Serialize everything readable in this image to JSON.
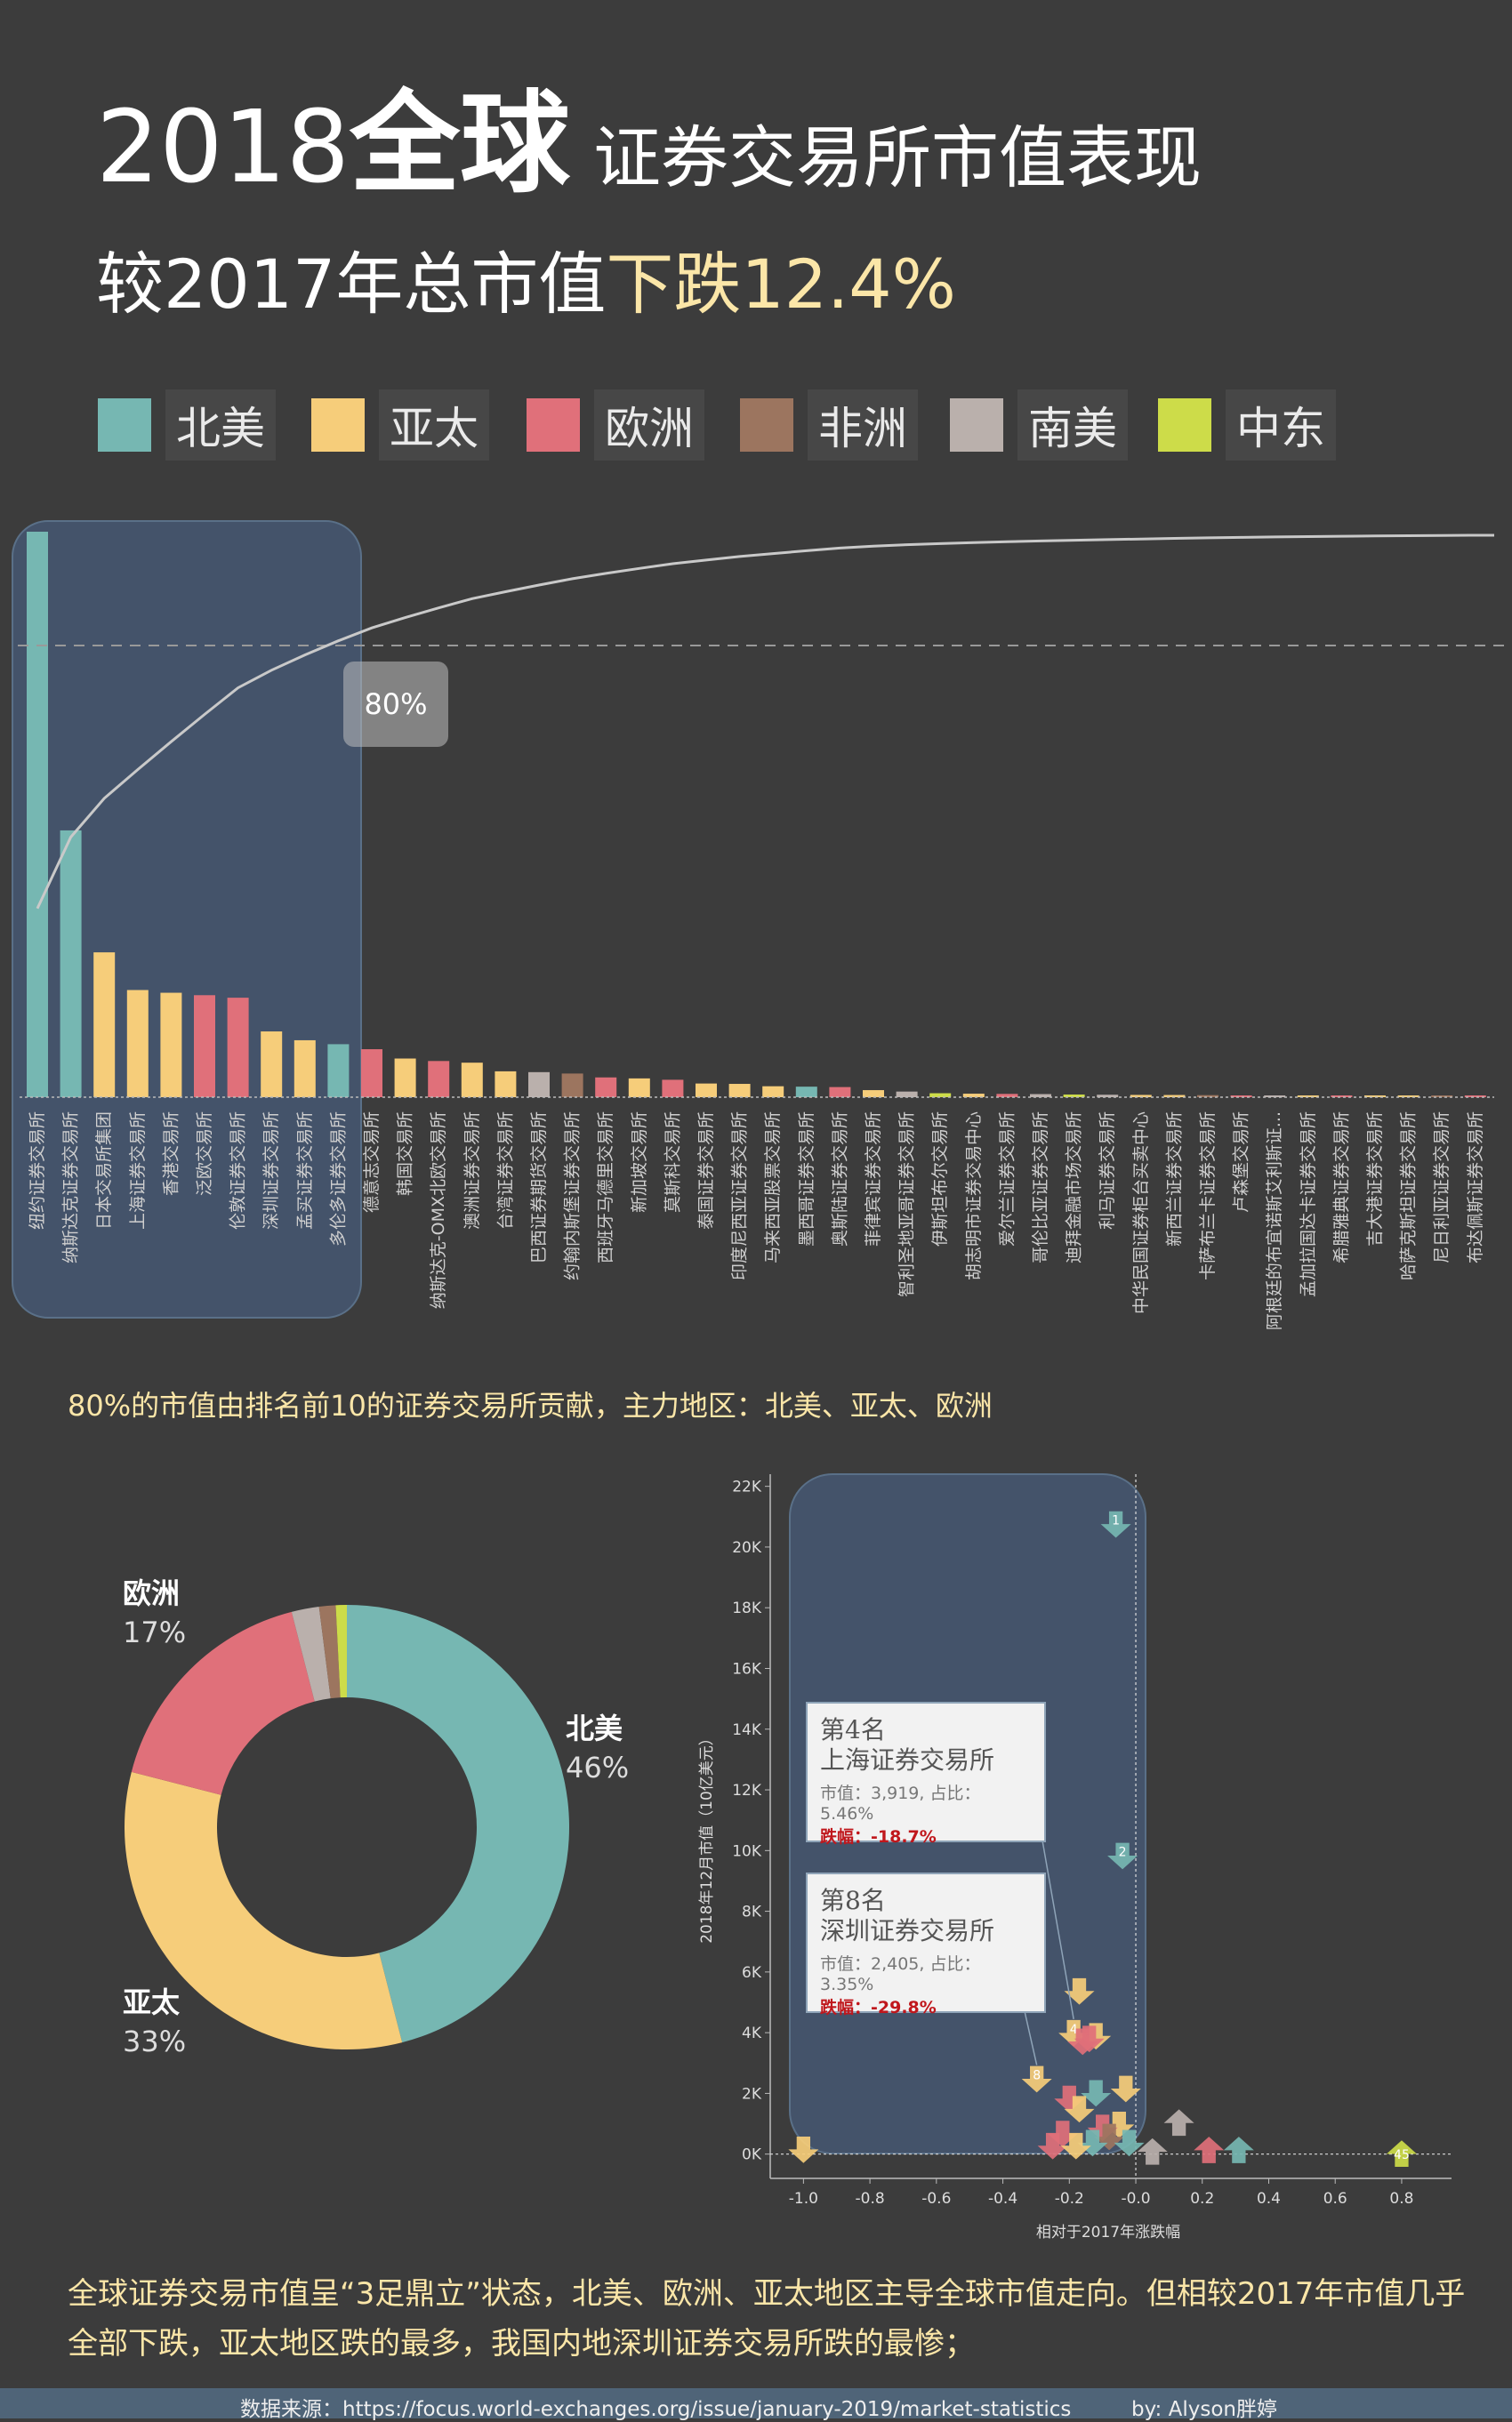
{
  "header": {
    "year": "2018",
    "global": "全球",
    "title_rest": "证券交易所市值表现",
    "subtitle_prefix": "较2017年总市值",
    "subtitle_highlight": "下跌12.4%"
  },
  "legend": [
    {
      "label": "北美",
      "color": "#76b7b2"
    },
    {
      "label": "亚太",
      "color": "#f6cd7a"
    },
    {
      "label": "欧洲",
      "color": "#e0707a"
    },
    {
      "label": "非洲",
      "color": "#9c755f"
    },
    {
      "label": "南美",
      "color": "#bab0ac"
    },
    {
      "label": "中东",
      "color": "#cddc49"
    }
  ],
  "colors": {
    "北美": "#76b7b2",
    "亚太": "#f6cd7a",
    "欧洲": "#e0707a",
    "非洲": "#9c755f",
    "南美": "#bab0ac",
    "中东": "#cddc49",
    "panel": "#44536a",
    "panel_border": "#5a7088",
    "bg": "#3c3c3c"
  },
  "annotation_80": "80%",
  "note1": "80%的市值由排名前10的证券交易所贡献，主力地区：北美、亚太、欧洲",
  "note2": "全球证券交易市值呈“3足鼎立”状态，北美、欧洲、亚太地区主导全球市值走向。但相较2017年市值几乎全部下跌，亚太地区跌的最多，我国内地深圳证券交易所跌的最惨；",
  "footer": {
    "source": "数据来源：https://focus.world-exchanges.org/issue/january-2019/market-statistics",
    "by": "by: Alyson胖婷"
  },
  "donut_labels": {
    "eu_name": "欧洲",
    "eu_pct": "17%",
    "na_name": "北美",
    "na_pct": "46%",
    "ap_name": "亚太",
    "ap_pct": "33%"
  },
  "tooltips": [
    {
      "rank": "第4名",
      "name": "上海证券交易所",
      "mv": "市值：3,919, 占比：5.46%",
      "drop": "跌幅：-18.7%"
    },
    {
      "rank": "第8名",
      "name": "深圳证券交易所",
      "mv": "市值：2,405, 占比：3.35%",
      "drop": "跌幅：-29.8%"
    }
  ],
  "chart_data": [
    {
      "type": "bar",
      "title": "",
      "xlabel": "",
      "ylabel": "",
      "grid": false,
      "categories": [
        "纽约证券交易所",
        "纳斯达克证券交易所",
        "日本交易所集团",
        "上海证券交易所",
        "香港交易所",
        "泛欧交易所",
        "伦敦证券交易所",
        "深圳证券交易所",
        "孟买证券交易所",
        "多伦多证券交易所",
        "德意志交易所",
        "韩国交易所",
        "纳斯达克-OMX北欧交易所",
        "澳洲证券交易所",
        "台湾证券交易所",
        "巴西证券期货交易所",
        "约翰内斯堡证券交易所",
        "西班牙马德里交易所",
        "新加坡交易所",
        "莫斯科交易所",
        "泰国证券交易所",
        "印度尼西亚证券交易所",
        "马来西亚股票交易所",
        "墨西哥证券交易所",
        "奥斯陆证券交易所",
        "菲律宾证券交易所",
        "智利圣地亚哥证券交易所",
        "伊斯坦布尔交易所",
        "胡志明市证券交易中心",
        "爱尔兰证券交易所",
        "哥伦比亚证券交易所",
        "迪拜金融市场交易所",
        "利马证券交易所",
        "中华民国证券柜台买卖中心",
        "新西兰证券交易所",
        "卡萨布兰卡证券交易所",
        "卢森堡交易所",
        "阿根廷的布宜诺斯艾利斯证...",
        "孟加拉国达卡证券交易所",
        "希腊雅典证券交易所",
        "吉大港证券交易所",
        "哈萨克斯坦证券交易所",
        "尼日利亚证券交易所",
        "布达佩斯证券交易所"
      ],
      "regions": [
        "北美",
        "北美",
        "亚太",
        "亚太",
        "亚太",
        "欧洲",
        "欧洲",
        "亚太",
        "亚太",
        "北美",
        "欧洲",
        "亚太",
        "欧洲",
        "亚太",
        "亚太",
        "南美",
        "非洲",
        "欧洲",
        "亚太",
        "欧洲",
        "亚太",
        "亚太",
        "亚太",
        "北美",
        "欧洲",
        "亚太",
        "南美",
        "中东",
        "亚太",
        "欧洲",
        "南美",
        "中东",
        "南美",
        "亚太",
        "亚太",
        "非洲",
        "欧洲",
        "南美",
        "亚太",
        "欧洲",
        "亚太",
        "亚太",
        "非洲",
        "欧洲"
      ],
      "values": [
        20680,
        9757,
        5297,
        3919,
        3819,
        3730,
        3638,
        2405,
        2083,
        1938,
        1755,
        1414,
        1323,
        1262,
        946,
        916,
        865,
        723,
        687,
        637,
        500,
        487,
        400,
        385,
        370,
        258,
        206,
        145,
        128,
        120,
        113,
        97,
        90,
        83,
        80,
        75,
        60,
        58,
        55,
        45,
        40,
        37,
        33,
        26
      ],
      "cumulative_percent_line": true,
      "reference_line_percent": 80,
      "highlight": "top 10"
    },
    {
      "type": "pie",
      "donut": true,
      "title": "",
      "slices": [
        {
          "label": "北美",
          "value": 46
        },
        {
          "label": "亚太",
          "value": 33
        },
        {
          "label": "欧洲",
          "value": 17
        },
        {
          "label": "南美",
          "value": 2
        },
        {
          "label": "非洲",
          "value": 1.2
        },
        {
          "label": "中东",
          "value": 0.8
        }
      ]
    },
    {
      "type": "scatter",
      "title": "",
      "xlabel": "相对于2017年涨跌幅",
      "ylabel": "2018年12月市值（10亿美元）",
      "xlim": [
        -1.1,
        0.95
      ],
      "ylim": [
        -800,
        22400
      ],
      "xticks": [
        "-1.0",
        "-0.8",
        "-0.6",
        "-0.4",
        "-0.2",
        "-0.0",
        "0.2",
        "0.4",
        "0.6",
        "0.8"
      ],
      "xtick_values": [
        -1.0,
        -0.8,
        -0.6,
        -0.4,
        -0.2,
        0,
        0.2,
        0.4,
        0.6,
        0.8
      ],
      "yticks": [
        "0K",
        "2K",
        "4K",
        "6K",
        "8K",
        "10K",
        "12K",
        "14K",
        "16K",
        "18K",
        "20K",
        "22K"
      ],
      "ytick_values": [
        0,
        2000,
        4000,
        6000,
        8000,
        10000,
        12000,
        14000,
        16000,
        18000,
        20000,
        22000
      ],
      "points": [
        {
          "x": -0.06,
          "y": 20680,
          "region": "北美",
          "label": "1"
        },
        {
          "x": -0.04,
          "y": 9757,
          "region": "北美",
          "label": "2"
        },
        {
          "x": -0.17,
          "y": 5297,
          "region": "亚太"
        },
        {
          "x": -0.187,
          "y": 3919,
          "region": "亚太",
          "label": "4"
        },
        {
          "x": -0.12,
          "y": 3819,
          "region": "亚太"
        },
        {
          "x": -0.14,
          "y": 3730,
          "region": "欧洲"
        },
        {
          "x": -0.16,
          "y": 3638,
          "region": "欧洲"
        },
        {
          "x": -0.298,
          "y": 2405,
          "region": "亚太",
          "label": "8"
        },
        {
          "x": -0.03,
          "y": 2083,
          "region": "亚太"
        },
        {
          "x": -0.12,
          "y": 1938,
          "region": "北美"
        },
        {
          "x": -0.2,
          "y": 1755,
          "region": "欧洲"
        },
        {
          "x": -0.17,
          "y": 1414,
          "region": "亚太"
        },
        {
          "x": 0.13,
          "y": 1100,
          "region": "南美"
        },
        {
          "x": -0.05,
          "y": 900,
          "region": "亚太"
        },
        {
          "x": -0.1,
          "y": 800,
          "region": "欧洲"
        },
        {
          "x": -0.22,
          "y": 600,
          "region": "欧洲"
        },
        {
          "x": -0.08,
          "y": 500,
          "region": "非洲"
        },
        {
          "x": 0.22,
          "y": 200,
          "region": "欧洲"
        },
        {
          "x": 0.31,
          "y": 200,
          "region": "北美"
        },
        {
          "x": -0.02,
          "y": 300,
          "region": "北美"
        },
        {
          "x": -0.13,
          "y": 300,
          "region": "北美"
        },
        {
          "x": -0.25,
          "y": 200,
          "region": "欧洲"
        },
        {
          "x": -0.18,
          "y": 200,
          "region": "亚太"
        },
        {
          "x": 0.05,
          "y": 150,
          "region": "南美"
        },
        {
          "x": -1.0,
          "y": 80,
          "region": "亚太"
        },
        {
          "x": 0.8,
          "y": 80,
          "region": "中东",
          "label": "45"
        }
      ],
      "highlight_region": "top 10"
    }
  ]
}
